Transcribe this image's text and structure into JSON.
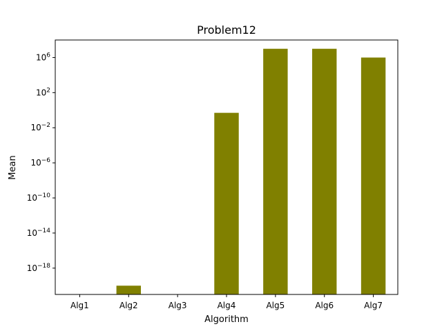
{
  "chart_data": {
    "type": "bar",
    "title": "Problem12",
    "xlabel": "Algorithm",
    "ylabel": "Mean",
    "yscale": "log",
    "ylim": [
      1e-21,
      100000000.0
    ],
    "yticks": [
      {
        "value": 1e-18,
        "base": "10",
        "exp": "−18"
      },
      {
        "value": 1e-14,
        "base": "10",
        "exp": "−14"
      },
      {
        "value": 1e-10,
        "base": "10",
        "exp": "−10"
      },
      {
        "value": 1e-06,
        "base": "10",
        "exp": "−6"
      },
      {
        "value": 0.01,
        "base": "10",
        "exp": "−2"
      },
      {
        "value": 100.0,
        "base": "10",
        "exp": "2"
      },
      {
        "value": 1000000.0,
        "base": "10",
        "exp": "6"
      }
    ],
    "categories": [
      "Alg1",
      "Alg2",
      "Alg3",
      "Alg4",
      "Alg5",
      "Alg6",
      "Alg7"
    ],
    "values": [
      0,
      1e-20,
      0,
      0.5,
      10000000,
      10000000,
      1000000
    ],
    "bar_color": "#808000",
    "grid": false,
    "legend": "none"
  }
}
